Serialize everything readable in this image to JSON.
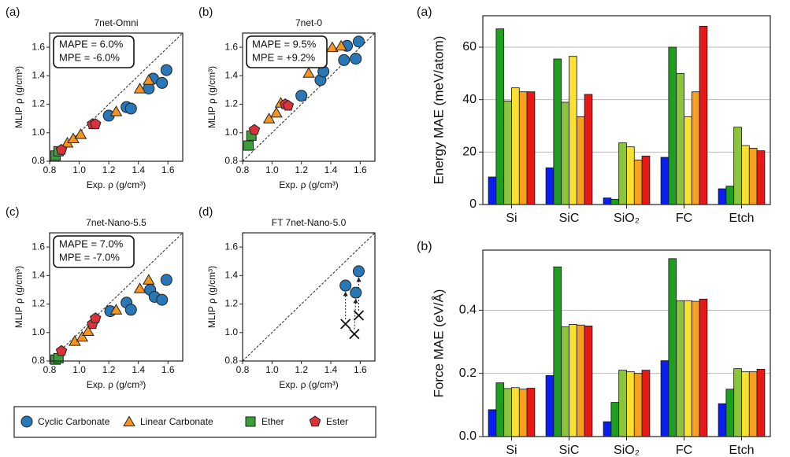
{
  "chart_data": [
    {
      "type": "scatter",
      "panel": "(a)",
      "title": "7net-Omni",
      "annotation": [
        "MAPE = 6.0%",
        "MPE = -6.0%"
      ],
      "xlabel": "Exp. ρ (g/cm³)",
      "ylabel": "MLIP ρ (g/cm³)",
      "xlim": [
        0.8,
        1.7
      ],
      "ylim": [
        0.8,
        1.7
      ],
      "xticks": [
        0.8,
        {
          "value": 1,
          "label": "1.0"
        },
        1.2,
        1.4,
        1.6
      ],
      "yticks": [
        0.8,
        {
          "value": 1,
          "label": "1.0"
        },
        1.2,
        1.4,
        1.6
      ],
      "series": [
        {
          "name": "Cyclic Carbonate",
          "color": "#2878b8",
          "marker": "circle",
          "x": [
            1.2,
            1.32,
            1.35,
            1.47,
            1.5,
            1.56,
            1.59
          ],
          "y": [
            1.12,
            1.18,
            1.17,
            1.31,
            1.38,
            1.35,
            1.44
          ]
        },
        {
          "name": "Linear Carbonate",
          "color": "#f7941d",
          "marker": "triangle",
          "x": [
            0.92,
            0.96,
            1.01,
            1.25,
            1.41,
            1.47
          ],
          "y": [
            0.93,
            0.96,
            0.99,
            1.15,
            1.31,
            1.37
          ]
        },
        {
          "name": "Ether",
          "color": "#3a9e3a",
          "marker": "square",
          "x": [
            0.84,
            0.86
          ],
          "y": [
            0.84,
            0.87
          ]
        },
        {
          "name": "Ester",
          "color": "#d8323a",
          "marker": "pentagon",
          "x": [
            0.88,
            1.09,
            1.11
          ],
          "y": [
            0.88,
            1.06,
            1.06
          ]
        }
      ]
    },
    {
      "type": "scatter",
      "panel": "(b)",
      "title": "7net-0",
      "annotation": [
        "MAPE = 9.5%",
        "MPE = +9.2%"
      ],
      "xlabel": "Exp. ρ (g/cm³)",
      "ylabel": "MLIP ρ (g/cm³)",
      "xlim": [
        0.8,
        1.7
      ],
      "ylim": [
        0.8,
        1.7
      ],
      "xticks": [
        0.8,
        {
          "value": 1,
          "label": "1.0"
        },
        1.2,
        1.4,
        1.6
      ],
      "yticks": [
        0.8,
        {
          "value": 1,
          "label": "1.0"
        },
        1.2,
        1.4,
        1.6
      ],
      "series": [
        {
          "name": "Cyclic Carbonate",
          "color": "#2878b8",
          "marker": "circle",
          "x": [
            1.2,
            1.33,
            1.35,
            1.49,
            1.51,
            1.57,
            1.59
          ],
          "y": [
            1.26,
            1.37,
            1.43,
            1.51,
            1.61,
            1.52,
            1.64
          ]
        },
        {
          "name": "Linear Carbonate",
          "color": "#f7941d",
          "marker": "triangle",
          "x": [
            0.98,
            1.03,
            1.06,
            1.25,
            1.41,
            1.47
          ],
          "y": [
            1.1,
            1.14,
            1.21,
            1.42,
            1.6,
            1.61
          ]
        },
        {
          "name": "Ether",
          "color": "#3a9e3a",
          "marker": "square",
          "x": [
            0.84,
            0.86
          ],
          "y": [
            0.91,
            0.98
          ]
        },
        {
          "name": "Ester",
          "color": "#d8323a",
          "marker": "pentagon",
          "x": [
            0.88,
            1.09,
            1.11
          ],
          "y": [
            1.02,
            1.2,
            1.19
          ]
        }
      ]
    },
    {
      "type": "scatter",
      "panel": "(c)",
      "title": "7net-Nano-5.5",
      "annotation": [
        "MAPE = 7.0%",
        "MPE = -7.0%"
      ],
      "xlabel": "Exp. ρ (g/cm³)",
      "ylabel": "MLIP ρ (g/cm³)",
      "xlim": [
        0.8,
        1.7
      ],
      "ylim": [
        0.8,
        1.7
      ],
      "xticks": [
        0.8,
        {
          "value": 1,
          "label": "1.0"
        },
        1.2,
        1.4,
        1.6
      ],
      "yticks": [
        0.8,
        {
          "value": 1,
          "label": "1.0"
        },
        1.2,
        1.4,
        1.6
      ],
      "series": [
        {
          "name": "Cyclic Carbonate",
          "color": "#2878b8",
          "marker": "circle",
          "x": [
            1.21,
            1.32,
            1.35,
            1.48,
            1.51,
            1.56,
            1.59
          ],
          "y": [
            1.15,
            1.21,
            1.16,
            1.3,
            1.25,
            1.23,
            1.37
          ]
        },
        {
          "name": "Linear Carbonate",
          "color": "#f7941d",
          "marker": "triangle",
          "x": [
            0.97,
            1.02,
            1.06,
            1.25,
            1.41,
            1.47
          ],
          "y": [
            0.94,
            0.97,
            1.01,
            1.16,
            1.31,
            1.37
          ]
        },
        {
          "name": "Ether",
          "color": "#3a9e3a",
          "marker": "square",
          "x": [
            0.84,
            0.86
          ],
          "y": [
            0.81,
            0.82
          ]
        },
        {
          "name": "Ester",
          "color": "#d8323a",
          "marker": "pentagon",
          "x": [
            0.88,
            1.09,
            1.11
          ],
          "y": [
            0.87,
            1.06,
            1.1
          ]
        }
      ]
    },
    {
      "type": "scatter",
      "panel": "(d)",
      "title": "FT 7net-Nano-5.0",
      "xlabel": "Exp. ρ (g/cm³)",
      "ylabel": "MLIP ρ (g/cm³)",
      "xlim": [
        0.8,
        1.7
      ],
      "ylim": [
        0.8,
        1.7
      ],
      "xticks": [
        0.8,
        {
          "value": 1,
          "label": "1.0"
        },
        1.2,
        1.4,
        1.6
      ],
      "yticks": [
        0.8,
        {
          "value": 1,
          "label": "1.0"
        },
        1.2,
        1.4,
        1.6
      ],
      "series": [
        {
          "name": "Cyclic Carbonate",
          "color": "#2878b8",
          "marker": "circle",
          "x": [
            1.5,
            1.57,
            1.59
          ],
          "y": [
            1.33,
            1.28,
            1.43
          ]
        }
      ],
      "reference_points": {
        "x": [
          1.5,
          1.56,
          1.59
        ],
        "y": [
          1.06,
          0.99,
          1.12
        ]
      }
    },
    {
      "type": "bar",
      "panel": "(a)",
      "ylabel": "Energy MAE (meV/atom)",
      "categories": [
        "Si",
        "SiC",
        "SiO₂",
        "FC",
        "Etch"
      ],
      "ylim": [
        0,
        72
      ],
      "yticks": [
        0,
        20,
        40,
        60
      ],
      "grid": true,
      "series": [
        {
          "color": "#0a1ef0",
          "values": [
            10.5,
            14,
            2.5,
            18,
            6
          ]
        },
        {
          "color": "#1f9f1f",
          "values": [
            67,
            55.5,
            2,
            60,
            7
          ]
        },
        {
          "color": "#8cc43c",
          "values": [
            39.5,
            39,
            23.5,
            50,
            29.5
          ]
        },
        {
          "color": "#fae030",
          "values": [
            44.5,
            56.5,
            22,
            33.5,
            22.5
          ]
        },
        {
          "color": "#f8a020",
          "values": [
            43,
            33.5,
            17,
            43,
            21.5
          ]
        },
        {
          "color": "#e81818",
          "values": [
            43,
            42,
            18.5,
            68,
            20.5
          ]
        }
      ]
    },
    {
      "type": "bar",
      "panel": "(b)",
      "ylabel": "Force MAE (eV/Å)",
      "categories": [
        "Si",
        "SiC",
        "SiO₂",
        "FC",
        "Etch"
      ],
      "ylim": [
        0,
        0.59
      ],
      "yticks": [
        {
          "value": 0,
          "label": "0.0"
        },
        0.2,
        0.4
      ],
      "grid": true,
      "series": [
        {
          "color": "#0a1ef0",
          "values": [
            0.085,
            0.193,
            0.047,
            0.24,
            0.104
          ]
        },
        {
          "color": "#1f9f1f",
          "values": [
            0.17,
            0.537,
            0.108,
            0.563,
            0.15
          ]
        },
        {
          "color": "#8cc43c",
          "values": [
            0.152,
            0.347,
            0.21,
            0.43,
            0.215
          ]
        },
        {
          "color": "#fae030",
          "values": [
            0.155,
            0.355,
            0.205,
            0.43,
            0.205
          ]
        },
        {
          "color": "#f8a020",
          "values": [
            0.15,
            0.353,
            0.2,
            0.428,
            0.205
          ]
        },
        {
          "color": "#e81818",
          "values": [
            0.153,
            0.35,
            0.21,
            0.435,
            0.213
          ]
        }
      ]
    }
  ]
}
